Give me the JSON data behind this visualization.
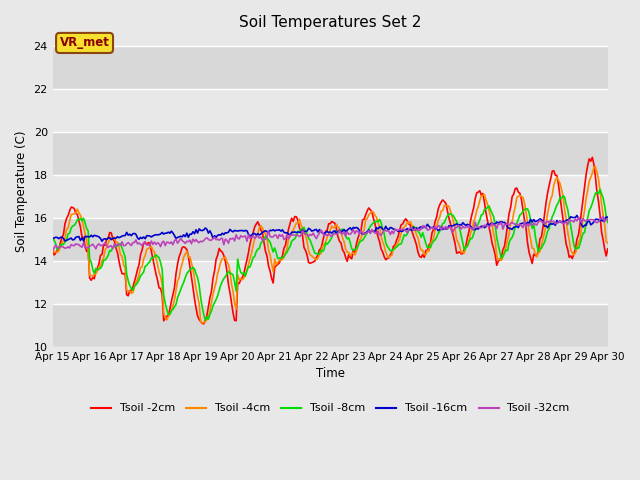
{
  "title": "Soil Temperatures Set 2",
  "xlabel": "Time",
  "ylabel": "Soil Temperature (C)",
  "ylim": [
    10,
    24.5
  ],
  "xlim": [
    0,
    360
  ],
  "background_color": "#e8e8e8",
  "plot_bg_color": "#e8e8e8",
  "grid_color": "white",
  "series": {
    "Tsoil -2cm": {
      "color": "#ff0000",
      "lw": 1.2
    },
    "Tsoil -4cm": {
      "color": "#ff8800",
      "lw": 1.2
    },
    "Tsoil -8cm": {
      "color": "#00dd00",
      "lw": 1.2
    },
    "Tsoil -16cm": {
      "color": "#0000cc",
      "lw": 1.2
    },
    "Tsoil -32cm": {
      "color": "#bb44bb",
      "lw": 1.2
    }
  },
  "xtick_labels": [
    "Apr 15",
    "Apr 16",
    "Apr 17",
    "Apr 18",
    "Apr 19",
    "Apr 20",
    "Apr 21",
    "Apr 22",
    "Apr 23",
    "Apr 24",
    "Apr 25",
    "Apr 26",
    "Apr 27",
    "Apr 28",
    "Apr 29",
    "Apr 30"
  ],
  "xtick_positions": [
    0,
    24,
    48,
    72,
    96,
    120,
    144,
    168,
    192,
    216,
    240,
    264,
    288,
    312,
    336,
    360
  ],
  "annotation_text": "VR_met",
  "ytick_positions": [
    10,
    12,
    14,
    16,
    18,
    20,
    22,
    24
  ]
}
